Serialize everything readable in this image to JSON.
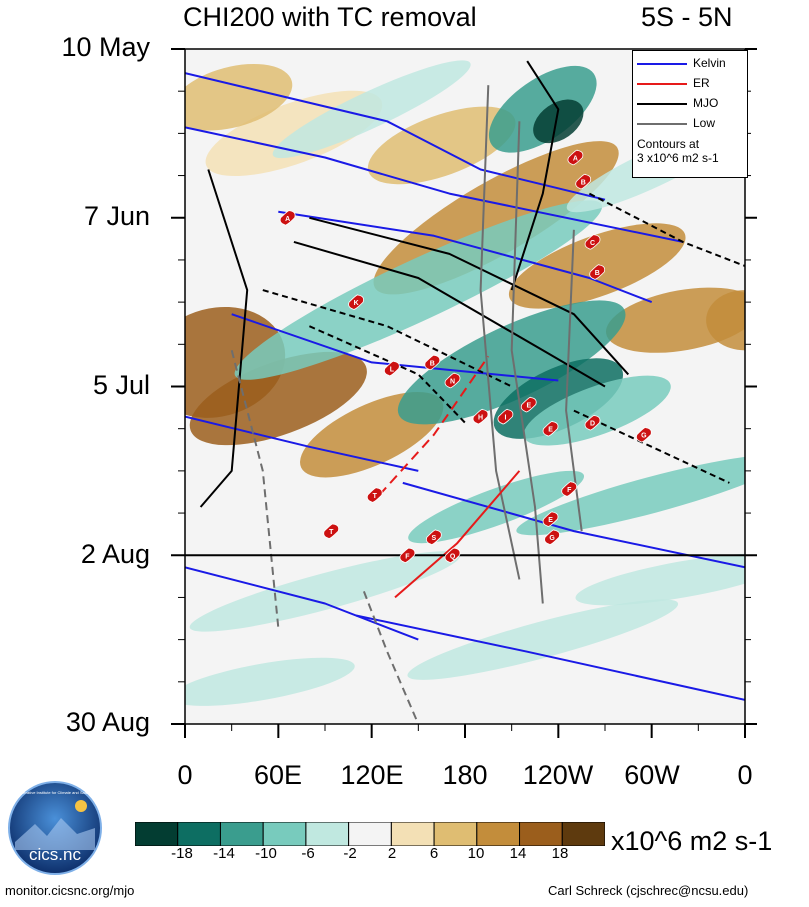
{
  "chart_data": {
    "type": "heatmap",
    "title": "CHI200 with TC removal",
    "subtitle": "5S - 5N",
    "ylabel": "",
    "xlabel": "",
    "y_ticks": [
      "10 May",
      "7 Jun",
      "5 Jul",
      "2 Aug",
      "30 Aug"
    ],
    "y_tick_days": [
      0,
      28,
      56,
      84,
      112
    ],
    "x_ticks": [
      "0",
      "60E",
      "120E",
      "180",
      "120W",
      "60W",
      "0"
    ],
    "x_tick_lons": [
      0,
      60,
      120,
      180,
      240,
      300,
      360
    ],
    "xlim": [
      0,
      360
    ],
    "ylim_days": [
      0,
      112
    ],
    "forecast_start": "2 Aug",
    "forecast_start_day": 84,
    "colorbar": {
      "levels": [
        -18,
        -14,
        -10,
        -6,
        -2,
        2,
        6,
        10,
        14,
        18
      ],
      "labels": [
        "-18",
        "-14",
        "-10",
        "-6",
        "-2",
        "2",
        "6",
        "10",
        "14",
        "18"
      ],
      "units": "x10^6 m2 s-1",
      "colors": [
        "#033d32",
        "#0d6e62",
        "#3a9d8e",
        "#78cbbd",
        "#c0e8e0",
        "#f4f4f4",
        "#f3e0b5",
        "#dfbd72",
        "#c38d3b",
        "#9b5e1c",
        "#5e3a0e"
      ]
    },
    "legend": {
      "entries": [
        {
          "label": "Kelvin",
          "color": "#1a1ae6"
        },
        {
          "label": "ER",
          "color": "#e61a1a"
        },
        {
          "label": "MJO",
          "color": "#000000"
        },
        {
          "label": "Low",
          "color": "#6e6e6e"
        }
      ],
      "note_line1": "Contours at",
      "note_line2": "3 x10^6 m2 s-1"
    },
    "cyclones": [
      {
        "id": "A",
        "lon": 66,
        "day": 28
      },
      {
        "id": "A",
        "lon": 251,
        "day": 18
      },
      {
        "id": "B",
        "lon": 256,
        "day": 22
      },
      {
        "id": "C",
        "lon": 262,
        "day": 32
      },
      {
        "id": "B",
        "lon": 265,
        "day": 37
      },
      {
        "id": "K",
        "lon": 110,
        "day": 42
      },
      {
        "id": "L",
        "lon": 133,
        "day": 53
      },
      {
        "id": "B",
        "lon": 159,
        "day": 52
      },
      {
        "id": "N",
        "lon": 172,
        "day": 55
      },
      {
        "id": "H",
        "lon": 190,
        "day": 61
      },
      {
        "id": "I",
        "lon": 206,
        "day": 61
      },
      {
        "id": "E",
        "lon": 221,
        "day": 59
      },
      {
        "id": "E",
        "lon": 235,
        "day": 63
      },
      {
        "id": "D",
        "lon": 262,
        "day": 62
      },
      {
        "id": "G",
        "lon": 295,
        "day": 64
      },
      {
        "id": "T",
        "lon": 122,
        "day": 74
      },
      {
        "id": "F",
        "lon": 247,
        "day": 73
      },
      {
        "id": "T",
        "lon": 94,
        "day": 80
      },
      {
        "id": "E",
        "lon": 235,
        "day": 78
      },
      {
        "id": "S",
        "lon": 160,
        "day": 81
      },
      {
        "id": "G",
        "lon": 236,
        "day": 81
      },
      {
        "id": "F",
        "lon": 143,
        "day": 84
      },
      {
        "id": "Q",
        "lon": 172,
        "day": 84
      }
    ]
  },
  "footer": {
    "left": "monitor.cicsnc.org/mjo",
    "right": "Carl Schreck (cjschrec@ncsu.edu)"
  },
  "logo": {
    "text": "cics.nc",
    "ring_text": "Cooperative Institute for Climate and Satellites"
  }
}
